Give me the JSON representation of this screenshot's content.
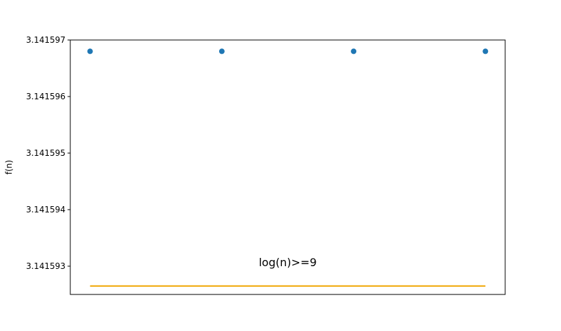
{
  "chart_data": {
    "type": "scatter",
    "title": "",
    "xlabel": "",
    "ylabel": "f(n)",
    "ylim": [
      3.1415925,
      3.141597
    ],
    "xlim": [
      0.85,
      4.15
    ],
    "x_ticks_visible": false,
    "grid": false,
    "y_ticks": [
      {
        "value": 3.141593,
        "label": "3.141593"
      },
      {
        "value": 3.141594,
        "label": "3.141594"
      },
      {
        "value": 3.141595,
        "label": "3.141595"
      },
      {
        "value": 3.141596,
        "label": "3.141596"
      },
      {
        "value": 3.141597,
        "label": "3.141597"
      }
    ],
    "series": [
      {
        "type": "scatter",
        "color": "#1f77b4",
        "points": [
          {
            "x": 1,
            "y": 3.1415968
          },
          {
            "x": 2,
            "y": 3.1415968
          },
          {
            "x": 3,
            "y": 3.1415968
          },
          {
            "x": 4,
            "y": 3.1415968
          }
        ]
      },
      {
        "type": "line",
        "color": "#f0a500",
        "points": [
          {
            "x": 1,
            "y": 3.14159265
          },
          {
            "x": 4,
            "y": 3.14159265
          }
        ]
      }
    ],
    "annotation": {
      "text": "log(n)>=9",
      "x": 2.5,
      "y": 3.141593
    }
  }
}
